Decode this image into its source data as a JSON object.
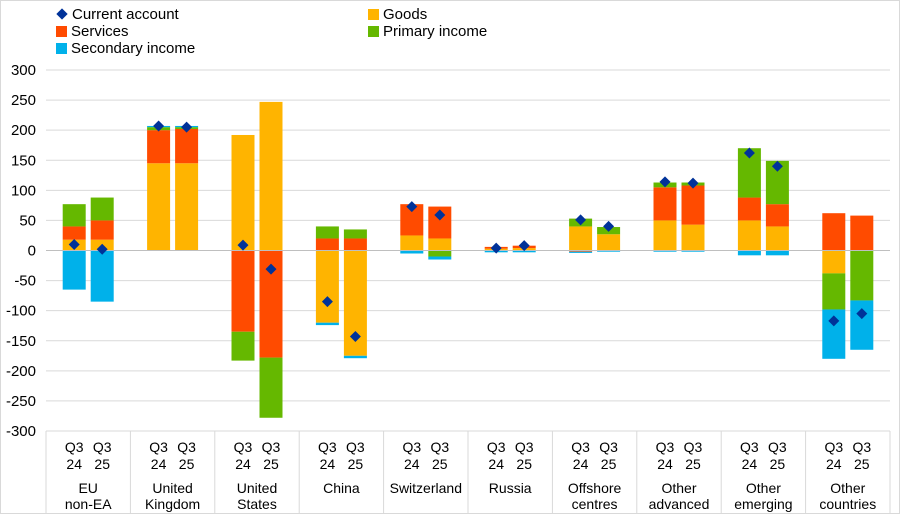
{
  "chart_data": {
    "type": "bar",
    "subtype": "stacked-bar-with-markers",
    "title": "",
    "xlabel": "",
    "ylabel": "",
    "ylim": [
      -300,
      300
    ],
    "yticks": [
      300,
      250,
      200,
      150,
      100,
      50,
      0,
      -50,
      -100,
      -150,
      -200,
      -250,
      -300
    ],
    "grid": true,
    "legend_position": "top",
    "groups": [
      {
        "label": [
          "EU",
          "non-EA"
        ],
        "periods": [
          "Q3 24",
          "Q3 25"
        ]
      },
      {
        "label": [
          "United",
          "Kingdom"
        ],
        "periods": [
          "Q3 24",
          "Q3 25"
        ]
      },
      {
        "label": [
          "United",
          "States"
        ],
        "periods": [
          "Q3 24",
          "Q3 25"
        ]
      },
      {
        "label": [
          "China"
        ],
        "periods": [
          "Q3 24",
          "Q3 25"
        ]
      },
      {
        "label": [
          "Switzerland"
        ],
        "periods": [
          "Q3 24",
          "Q3 25"
        ]
      },
      {
        "label": [
          "Russia"
        ],
        "periods": [
          "Q3 24",
          "Q3 25"
        ]
      },
      {
        "label": [
          "Offshore",
          "centres"
        ],
        "periods": [
          "Q3 24",
          "Q3 25"
        ]
      },
      {
        "label": [
          "Other",
          "advanced"
        ],
        "periods": [
          "Q3 24",
          "Q3 25"
        ]
      },
      {
        "label": [
          "Other",
          "emerging"
        ],
        "periods": [
          "Q3 24",
          "Q3 25"
        ]
      },
      {
        "label": [
          "Other",
          "countries"
        ],
        "periods": [
          "Q3 24",
          "Q3 25"
        ]
      }
    ],
    "series": [
      {
        "name": "Goods",
        "color": "#FFB400",
        "values": [
          18,
          18,
          145,
          145,
          192,
          247,
          -120,
          -175,
          25,
          20,
          3,
          4,
          40,
          27,
          50,
          43,
          50,
          40,
          -38,
          0
        ]
      },
      {
        "name": "Services",
        "color": "#FF4B00",
        "values": [
          22,
          32,
          55,
          57,
          -135,
          -178,
          20,
          20,
          52,
          53,
          3,
          4,
          -2,
          0,
          55,
          65,
          38,
          37,
          62,
          58
        ]
      },
      {
        "name": "Primary income",
        "color": "#65B800",
        "values": [
          37,
          38,
          5,
          3,
          -48,
          -100,
          20,
          15,
          0,
          -10,
          0,
          0,
          13,
          12,
          8,
          5,
          82,
          72,
          -60,
          -83
        ]
      },
      {
        "name": "Secondary income",
        "color": "#00B1EA",
        "values": [
          -65,
          -85,
          2,
          2,
          0,
          0,
          -4,
          -4,
          -5,
          -5,
          -3,
          -3,
          -2,
          -2,
          -2,
          -2,
          -8,
          -8,
          -82,
          -82
        ]
      }
    ],
    "markers": {
      "name": "Current account",
      "color": "#003299",
      "values": [
        10,
        2,
        207,
        205,
        9,
        -31,
        -85,
        -143,
        73,
        59,
        4,
        8,
        51,
        40,
        114,
        112,
        162,
        140,
        -117,
        -105
      ]
    }
  }
}
